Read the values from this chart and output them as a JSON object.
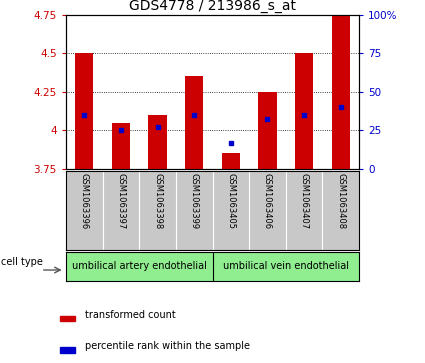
{
  "title": "GDS4778 / 213986_s_at",
  "samples": [
    "GSM1063396",
    "GSM1063397",
    "GSM1063398",
    "GSM1063399",
    "GSM1063405",
    "GSM1063406",
    "GSM1063407",
    "GSM1063408"
  ],
  "bar_bottoms": [
    3.75,
    3.75,
    3.75,
    3.75,
    3.75,
    3.75,
    3.75,
    3.75
  ],
  "bar_tops": [
    4.5,
    4.05,
    4.1,
    4.35,
    3.85,
    4.25,
    4.5,
    4.75
  ],
  "blue_dots": [
    4.1,
    4.0,
    4.02,
    4.1,
    3.92,
    4.07,
    4.1,
    4.15
  ],
  "ylim": [
    3.75,
    4.75
  ],
  "yticks": [
    3.75,
    4.0,
    4.25,
    4.5,
    4.75
  ],
  "ytick_labels": [
    "3.75",
    "4",
    "4.25",
    "4.5",
    "4.75"
  ],
  "y2ticks": [
    0,
    25,
    50,
    75,
    100
  ],
  "y2tick_labels": [
    "0",
    "25",
    "50",
    "75",
    "100%"
  ],
  "bar_color": "#cc0000",
  "dot_color": "#0000cc",
  "bar_width": 0.5,
  "group1_label": "umbilical artery endothelial",
  "group2_label": "umbilical vein endothelial",
  "group1_indices": [
    0,
    1,
    2,
    3
  ],
  "group2_indices": [
    4,
    5,
    6,
    7
  ],
  "cell_type_label": "cell type",
  "legend_bar_label": "transformed count",
  "legend_dot_label": "percentile rank within the sample",
  "plot_bg": "#ffffff",
  "sample_bg": "#c8c8c8",
  "group_bg": "#90EE90",
  "title_fontsize": 10,
  "tick_fontsize": 7.5,
  "sample_fontsize": 6,
  "group_fontsize": 7,
  "legend_fontsize": 7,
  "axis_label_color_left": "#cc0000",
  "axis_label_color_right": "#0000cc",
  "grid_yticks": [
    4.0,
    4.25,
    4.5
  ]
}
